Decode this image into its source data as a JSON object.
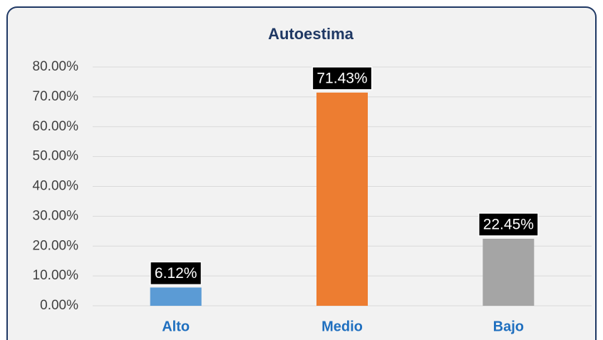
{
  "chart_data": {
    "type": "bar",
    "title": "Autoestima",
    "categories": [
      "Alto",
      "Medio",
      "Bajo"
    ],
    "values": [
      6.12,
      71.43,
      22.45
    ],
    "value_labels": [
      "6.12%",
      "71.43%",
      "22.45%"
    ],
    "colors": [
      "#5b9bd5",
      "#ed7d31",
      "#a5a5a5"
    ],
    "ylim": [
      0,
      80
    ],
    "yticks": [
      {
        "value": 0,
        "label": "0.00%"
      },
      {
        "value": 10,
        "label": "10.00%"
      },
      {
        "value": 20,
        "label": "20.00%"
      },
      {
        "value": 30,
        "label": "30.00%"
      },
      {
        "value": 40,
        "label": "40.00%"
      },
      {
        "value": 50,
        "label": "50.00%"
      },
      {
        "value": 60,
        "label": "60.00%"
      },
      {
        "value": 70,
        "label": "70.00%"
      },
      {
        "value": 80,
        "label": "80.00%"
      }
    ],
    "grid": true
  }
}
